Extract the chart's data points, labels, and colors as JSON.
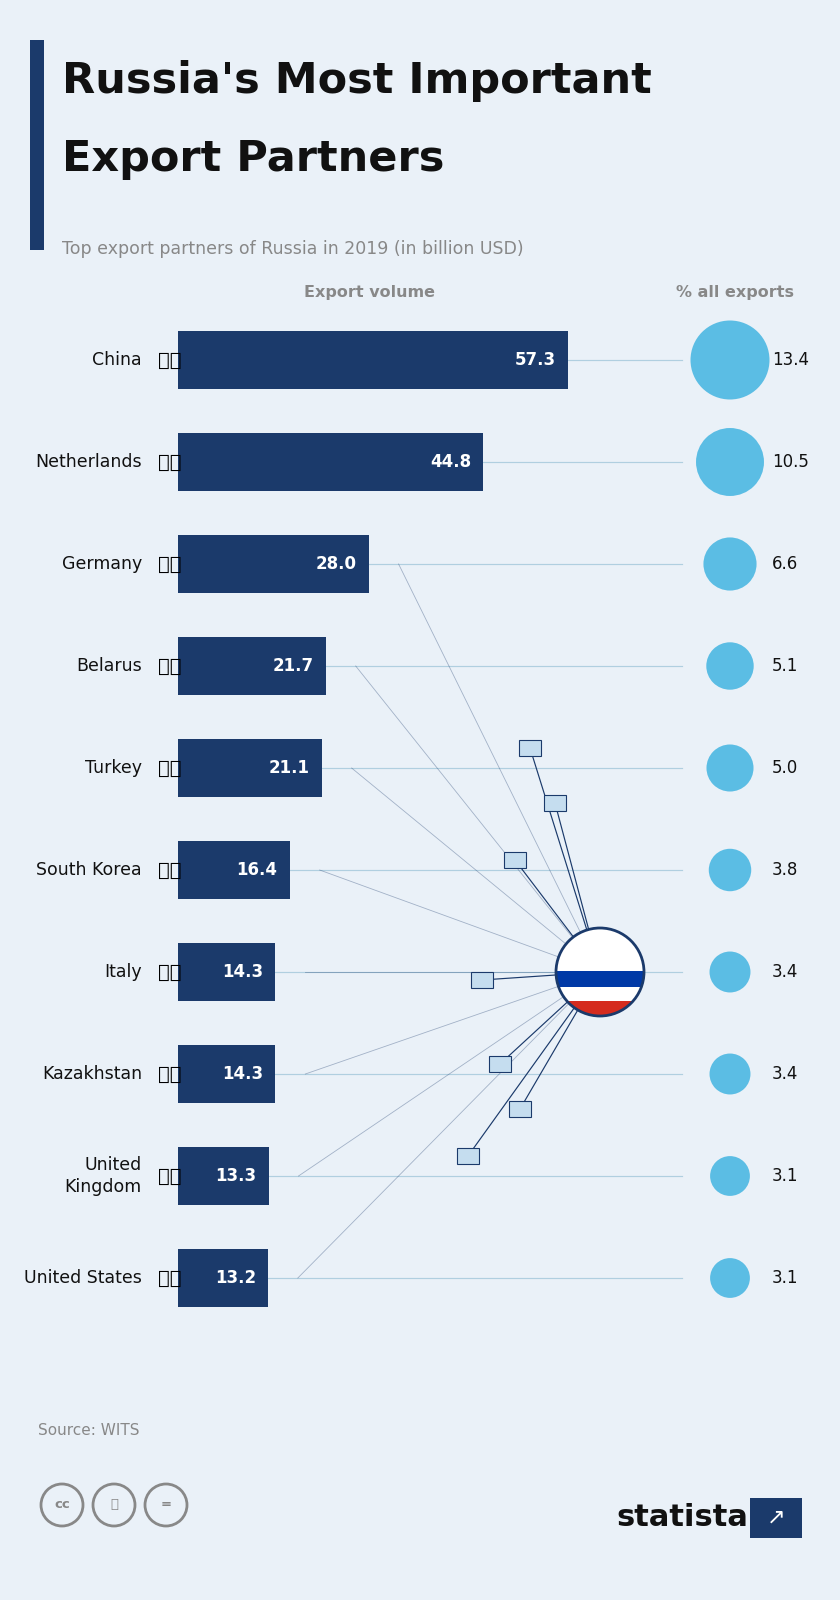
{
  "title_line1": "Russia's Most Important",
  "title_line2": "Export Partners",
  "subtitle": "Top export partners of Russia in 2019 (in billion USD)",
  "col_header_left": "Export volume",
  "col_header_right": "% all exports",
  "source": "Source: WITS",
  "bg_color": "#eaf1f8",
  "bar_color": "#1b3a6b",
  "bubble_color": "#5bbde4",
  "accent_color": "#1b3a6b",
  "connector_color": "#b0cfe0",
  "spider_color": "#1b3a6b",
  "sq_fill": "#c5ddef",
  "sq_edge": "#1b3a6b",
  "russia_white": "#ffffff",
  "russia_blue": "#0039a6",
  "russia_red": "#d52b1e",
  "russia_border": "#1b3a6b",
  "text_dark": "#111111",
  "text_gray": "#888888",
  "countries": [
    "China",
    "Netherlands",
    "Germany",
    "Belarus",
    "Turkey",
    "South Korea",
    "Italy",
    "Kazakhstan",
    "United\nKingdom",
    "United States"
  ],
  "flag_emojis": [
    "🇨🇳",
    "🇳🇱",
    "🇩🇪",
    "🇧🇾",
    "🇹🇷",
    "🇰🇷",
    "🇮🇹",
    "🇰🇿",
    "🇬🇧",
    "🇺🇸"
  ],
  "values": [
    57.3,
    44.8,
    28.0,
    21.7,
    21.1,
    16.4,
    14.3,
    14.3,
    13.3,
    13.2
  ],
  "pct": [
    13.4,
    10.5,
    6.6,
    5.1,
    5.0,
    3.8,
    3.4,
    3.4,
    3.1,
    3.1
  ],
  "fig_w": 8.4,
  "fig_h": 16.0,
  "dpi": 100
}
